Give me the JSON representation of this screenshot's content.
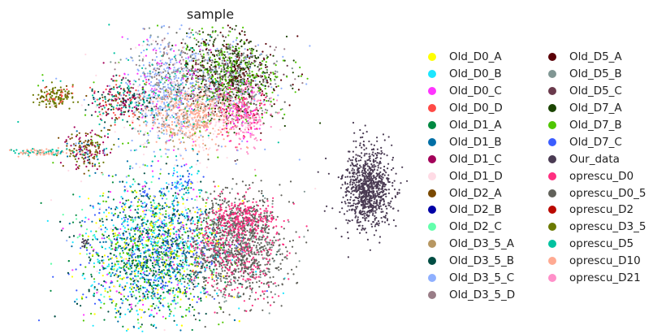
{
  "chart_data": {
    "type": "scatter",
    "title": "sample",
    "xlabel": "",
    "ylabel": "",
    "grid": false,
    "axes_visible": false,
    "legend_placement": "right",
    "legend_columns": 2,
    "series": [
      {
        "name": "Old_D0_A",
        "color": "#ffff00"
      },
      {
        "name": "Old_D0_B",
        "color": "#1ce6ff"
      },
      {
        "name": "Old_D0_C",
        "color": "#ff34ff"
      },
      {
        "name": "Old_D0_D",
        "color": "#ff4a46"
      },
      {
        "name": "Old_D1_A",
        "color": "#008941"
      },
      {
        "name": "Old_D1_B",
        "color": "#006fa6"
      },
      {
        "name": "Old_D1_C",
        "color": "#a30059"
      },
      {
        "name": "Old_D1_D",
        "color": "#ffdbe5"
      },
      {
        "name": "Old_D2_A",
        "color": "#7a4900"
      },
      {
        "name": "Old_D2_B",
        "color": "#0000a6"
      },
      {
        "name": "Old_D2_C",
        "color": "#63ffac"
      },
      {
        "name": "Old_D3_5_A",
        "color": "#b79762"
      },
      {
        "name": "Old_D3_5_B",
        "color": "#004d43"
      },
      {
        "name": "Old_D3_5_C",
        "color": "#8fb0ff"
      },
      {
        "name": "Old_D3_5_D",
        "color": "#997d87"
      },
      {
        "name": "Old_D5_A",
        "color": "#5a0007"
      },
      {
        "name": "Old_D5_B",
        "color": "#809693"
      },
      {
        "name": "Old_D5_C",
        "color": "#6a3a4c"
      },
      {
        "name": "Old_D7_A",
        "color": "#1b4400"
      },
      {
        "name": "Old_D7_B",
        "color": "#4fc601"
      },
      {
        "name": "Old_D7_C",
        "color": "#3b5dff"
      },
      {
        "name": "Our_data",
        "color": "#4a3b53"
      },
      {
        "name": "oprescu_D0",
        "color": "#ff2f80"
      },
      {
        "name": "oprescu_D0_5",
        "color": "#61615a"
      },
      {
        "name": "oprescu_D2",
        "color": "#ba0900"
      },
      {
        "name": "oprescu_D3_5",
        "color": "#6b7900"
      },
      {
        "name": "oprescu_D5",
        "color": "#00c2a0"
      },
      {
        "name": "oprescu_D10",
        "color": "#ffaa92"
      },
      {
        "name": "oprescu_D21",
        "color": "#ff90c9"
      }
    ]
  }
}
